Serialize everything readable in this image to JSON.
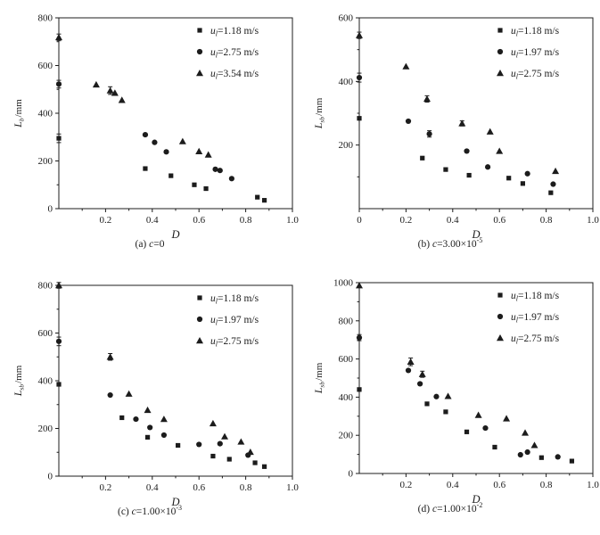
{
  "figure": {
    "background": "#ffffff",
    "ink": "#1c1c1c"
  },
  "chart_data": [
    {
      "id": "a",
      "type": "scatter",
      "caption": {
        "prefix": "(a) ",
        "var": "c",
        "base": "=0",
        "sup": ""
      },
      "xlabel": "D",
      "ylabel": {
        "main": "L",
        "sub": "b",
        "unit": "/mm"
      },
      "xlim": [
        0,
        1.0
      ],
      "ylim": [
        0,
        800
      ],
      "xticks": [
        0.2,
        0.4,
        0.6,
        0.8,
        1.0
      ],
      "yticks": [
        0,
        200,
        400,
        600,
        800
      ],
      "xminor": 0.1,
      "yminor": 100,
      "legend_position": "top-right",
      "grid": false,
      "series": [
        {
          "marker": "square",
          "label": {
            "pre": "u",
            "sub": "l",
            "post": "=1.18 m/s"
          },
          "points": [
            [
              0,
              295,
              18
            ],
            [
              0.37,
              168
            ],
            [
              0.48,
              138
            ],
            [
              0.58,
              100
            ],
            [
              0.63,
              84
            ],
            [
              0.85,
              48
            ],
            [
              0.88,
              35
            ]
          ]
        },
        {
          "marker": "circle",
          "label": {
            "pre": "u",
            "sub": "l",
            "post": "=2.75 m/s"
          },
          "points": [
            [
              0,
              522,
              16
            ],
            [
              0.37,
              310
            ],
            [
              0.41,
              278
            ],
            [
              0.46,
              238
            ],
            [
              0.67,
              165
            ],
            [
              0.69,
              160
            ],
            [
              0.74,
              126
            ]
          ]
        },
        {
          "marker": "triangle",
          "label": {
            "pre": "u",
            "sub": "l",
            "post": "=3.54 m/s"
          },
          "points": [
            [
              0,
              718,
              14
            ],
            [
              0.16,
              520
            ],
            [
              0.22,
              495,
              16
            ],
            [
              0.24,
              485
            ],
            [
              0.27,
              455
            ],
            [
              0.53,
              282
            ],
            [
              0.6,
              240
            ],
            [
              0.64,
              226
            ]
          ]
        }
      ]
    },
    {
      "id": "b",
      "type": "scatter",
      "caption": {
        "prefix": "(b) ",
        "var": "c",
        "base": "=3.00×10",
        "sup": "-5"
      },
      "xlabel": "D",
      "ylabel": {
        "main": "L",
        "sub": "sb",
        "unit": "/mm"
      },
      "xlim": [
        0,
        1.0
      ],
      "ylim": [
        0,
        600
      ],
      "xticks": [
        0,
        0.2,
        0.4,
        0.6,
        0.8,
        1.0
      ],
      "yticks": [
        200,
        400,
        600
      ],
      "xminor": 0.1,
      "yminor": 100,
      "legend_position": "top-right",
      "grid": false,
      "series": [
        {
          "marker": "square",
          "label": {
            "pre": "u",
            "sub": "l",
            "post": "=1.18 m/s"
          },
          "points": [
            [
              0,
              284
            ],
            [
              0.27,
              159
            ],
            [
              0.37,
              123
            ],
            [
              0.47,
              105
            ],
            [
              0.64,
              96
            ],
            [
              0.7,
              79
            ],
            [
              0.82,
              50
            ]
          ]
        },
        {
          "marker": "circle",
          "label": {
            "pre": "u",
            "sub": "l",
            "post": "=1.97 m/s"
          },
          "points": [
            [
              0,
              412,
              14
            ],
            [
              0.21,
              275
            ],
            [
              0.3,
              235,
              10
            ],
            [
              0.46,
              181
            ],
            [
              0.55,
              131
            ],
            [
              0.72,
              110
            ],
            [
              0.83,
              77
            ]
          ]
        },
        {
          "marker": "triangle",
          "label": {
            "pre": "u",
            "sub": "l",
            "post": "=2.75 m/s"
          },
          "points": [
            [
              0,
              545,
              10
            ],
            [
              0.2,
              447
            ],
            [
              0.29,
              345,
              10
            ],
            [
              0.44,
              268,
              8
            ],
            [
              0.56,
              242
            ],
            [
              0.6,
              181
            ],
            [
              0.84,
              118
            ]
          ]
        }
      ]
    },
    {
      "id": "c",
      "type": "scatter",
      "caption": {
        "prefix": "(c) ",
        "var": "c",
        "base": "=1.00×10",
        "sup": "-3"
      },
      "xlabel": "D",
      "ylabel": {
        "main": "L",
        "sub": "sb",
        "unit": "/mm"
      },
      "xlim": [
        0,
        1.0
      ],
      "ylim": [
        0,
        800
      ],
      "xticks": [
        0.2,
        0.4,
        0.6,
        0.8,
        1.0
      ],
      "yticks": [
        0,
        200,
        400,
        600,
        800
      ],
      "xminor": 0.1,
      "yminor": 100,
      "legend_position": "top-right",
      "grid": false,
      "series": [
        {
          "marker": "square",
          "label": {
            "pre": "u",
            "sub": "l",
            "post": "=1.18 m/s"
          },
          "points": [
            [
              0,
              385
            ],
            [
              0.27,
              245
            ],
            [
              0.38,
              163
            ],
            [
              0.51,
              129
            ],
            [
              0.66,
              84
            ],
            [
              0.73,
              71
            ],
            [
              0.84,
              56
            ],
            [
              0.88,
              40
            ]
          ]
        },
        {
          "marker": "circle",
          "label": {
            "pre": "u",
            "sub": "l",
            "post": "=1.97 m/s"
          },
          "points": [
            [
              0,
              565,
              18
            ],
            [
              0.22,
              340
            ],
            [
              0.33,
              239
            ],
            [
              0.39,
              204
            ],
            [
              0.45,
              172
            ],
            [
              0.6,
              133
            ],
            [
              0.69,
              136
            ],
            [
              0.81,
              88
            ]
          ]
        },
        {
          "marker": "triangle",
          "label": {
            "pre": "u",
            "sub": "l",
            "post": "=2.75 m/s"
          },
          "points": [
            [
              0,
              800,
              12
            ],
            [
              0.22,
              500,
              14
            ],
            [
              0.3,
              345
            ],
            [
              0.38,
              277
            ],
            [
              0.45,
              239
            ],
            [
              0.66,
              221
            ],
            [
              0.71,
              166
            ],
            [
              0.78,
              144
            ],
            [
              0.82,
              101
            ]
          ]
        }
      ]
    },
    {
      "id": "d",
      "type": "scatter",
      "caption": {
        "prefix": "(d) ",
        "var": "c",
        "base": "=1.00×10",
        "sup": "-2"
      },
      "xlabel": "D",
      "ylabel": {
        "main": "L",
        "sub": "sb",
        "unit": "/mm"
      },
      "xlim": [
        0,
        1.0
      ],
      "ylim": [
        0,
        1000
      ],
      "xticks": [
        0.2,
        0.4,
        0.6,
        0.8,
        1.0
      ],
      "yticks": [
        0,
        200,
        400,
        600,
        800,
        1000
      ],
      "xminor": 0.1,
      "yminor": 100,
      "legend_position": "top-right",
      "grid": false,
      "series": [
        {
          "marker": "square",
          "label": {
            "pre": "u",
            "sub": "l",
            "post": "=1.18 m/s"
          },
          "points": [
            [
              0,
              440
            ],
            [
              0.29,
              365
            ],
            [
              0.37,
              323
            ],
            [
              0.46,
              218
            ],
            [
              0.58,
              138
            ],
            [
              0.78,
              83
            ],
            [
              0.91,
              65
            ]
          ]
        },
        {
          "marker": "circle",
          "label": {
            "pre": "u",
            "sub": "l",
            "post": "=1.97 m/s"
          },
          "points": [
            [
              0,
              712,
              16
            ],
            [
              0.21,
              540
            ],
            [
              0.26,
              470
            ],
            [
              0.33,
              403
            ],
            [
              0.54,
              238
            ],
            [
              0.69,
              98
            ],
            [
              0.72,
              112
            ],
            [
              0.85,
              87
            ]
          ]
        },
        {
          "marker": "triangle",
          "label": {
            "pre": "u",
            "sub": "l",
            "post": "=2.75 m/s"
          },
          "points": [
            [
              0,
              985
            ],
            [
              0.22,
              585,
              20
            ],
            [
              0.27,
              520,
              16
            ],
            [
              0.38,
              405
            ],
            [
              0.51,
              306
            ],
            [
              0.63,
              288
            ],
            [
              0.71,
              213
            ],
            [
              0.75,
              148
            ]
          ]
        }
      ]
    }
  ]
}
